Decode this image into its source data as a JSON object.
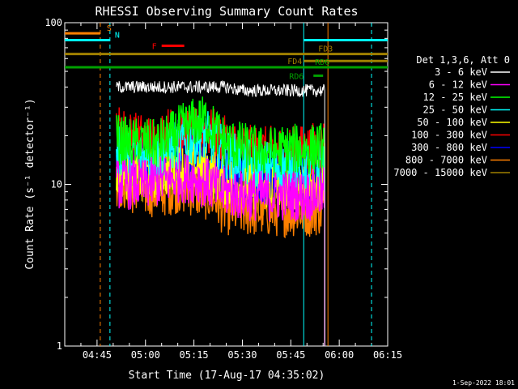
{
  "chart_data": {
    "type": "line",
    "title": "RHESSI Observing Summary Count Rates",
    "xlabel": "Start Time (17-Aug-17 04:35:02)",
    "ylabel": "Count Rate (s⁻¹ detector⁻¹)",
    "yscale": "log",
    "ylim": [
      1,
      100
    ],
    "xlim_minutes": [
      0,
      100
    ],
    "x_ticks": [
      {
        "label": "04:45",
        "minute": 10
      },
      {
        "label": "05:00",
        "minute": 25
      },
      {
        "label": "05:15",
        "minute": 40
      },
      {
        "label": "05:30",
        "minute": 55
      },
      {
        "label": "05:45",
        "minute": 70
      },
      {
        "label": "06:00",
        "minute": 85
      },
      {
        "label": "06:15",
        "minute": 100
      }
    ],
    "y_ticks": [
      {
        "label": "1",
        "value": 1
      },
      {
        "label": "10",
        "value": 10
      },
      {
        "label": "100",
        "value": 100
      }
    ],
    "legend_title": "Det 1,3,6, Att 0",
    "legend_position": "right",
    "footer_date": "1-Sep-2022 18:01",
    "series": [
      {
        "name": "3 - 6 keV",
        "color": "#ffffff",
        "x": [
          16,
          17,
          20,
          25,
          30,
          35,
          40,
          45,
          50,
          55,
          60,
          65,
          70,
          76,
          80.5
        ],
        "y": [
          40,
          40,
          40,
          40,
          40,
          40,
          40,
          40,
          40,
          38,
          38,
          38,
          38,
          38,
          38
        ]
      },
      {
        "name": "6 - 12 keV",
        "color": "#ff00ff",
        "x": [
          16,
          20,
          25,
          30,
          35,
          40,
          45,
          48,
          50,
          55,
          60,
          65,
          70,
          76,
          80.5
        ],
        "y": [
          10,
          10,
          10,
          10.5,
          11,
          11,
          10,
          9,
          9,
          8.5,
          8.5,
          8.5,
          8.5,
          8.5,
          9
        ]
      },
      {
        "name": "12 - 25 keV",
        "color": "#00ff00",
        "x": [
          16,
          20,
          25,
          28,
          32,
          36,
          40,
          44,
          46,
          48,
          50,
          55,
          60,
          65,
          70,
          76,
          80.5
        ],
        "y": [
          19,
          18,
          18,
          17.5,
          19,
          22,
          24,
          25,
          22,
          20,
          18,
          17,
          16,
          16,
          16.5,
          16.5,
          17
        ]
      },
      {
        "name": "25 - 50 keV",
        "color": "#00ffff",
        "x": [
          16,
          20,
          25,
          28,
          32,
          36,
          40,
          44,
          48,
          50,
          55,
          60,
          65,
          70,
          76,
          80.5
        ],
        "y": [
          16,
          15.5,
          15,
          15,
          16.5,
          18,
          19,
          20,
          17,
          15,
          14,
          13,
          13,
          13,
          13,
          14
        ]
      },
      {
        "name": "50 - 100 keV",
        "color": "#ffff00",
        "x": [
          16,
          20,
          25,
          30,
          35,
          40,
          45,
          48,
          50,
          55,
          60,
          65,
          70,
          76,
          80.5
        ],
        "y": [
          12,
          11.5,
          11.5,
          12,
          12.5,
          13,
          12,
          11,
          10.5,
          10,
          10,
          10,
          10,
          10,
          10.5
        ]
      },
      {
        "name": "100 - 300 keV",
        "color": "#ff0000",
        "x": [
          16,
          20,
          25,
          28,
          32,
          36,
          40,
          44,
          48,
          50,
          55,
          60,
          65,
          70,
          76,
          80.5
        ],
        "y": [
          22,
          20,
          19,
          18.5,
          21,
          21,
          20.5,
          21,
          20,
          18,
          16.5,
          16,
          16,
          16,
          16.5,
          18
        ]
      },
      {
        "name": "300 - 800 keV",
        "color": "#0000ff",
        "x": [
          16,
          20,
          25,
          30,
          35,
          40,
          45,
          48,
          50,
          55,
          60,
          65,
          70,
          76,
          80.5
        ],
        "y": [
          15,
          14,
          13.5,
          14,
          14.5,
          14.5,
          13.5,
          12.5,
          11.5,
          11,
          11,
          11,
          11,
          11,
          12
        ]
      },
      {
        "name": "800 - 7000 keV",
        "color": "#ff8000",
        "x": [
          16,
          20,
          25,
          30,
          35,
          40,
          45,
          47,
          49,
          55,
          60,
          65,
          70,
          76,
          80.5
        ],
        "y": [
          10.5,
          9.5,
          9,
          9,
          9.5,
          9,
          8.5,
          8,
          7,
          6.8,
          6.8,
          6.8,
          6.8,
          6.8,
          7
        ]
      },
      {
        "name": "7000 - 15000 keV",
        "color": "#a08000",
        "x": [
          16,
          20,
          25,
          30,
          35,
          40,
          45,
          48,
          50,
          55,
          60,
          65,
          70,
          76,
          80.5
        ],
        "y": [
          11,
          10.5,
          10.5,
          10.5,
          11,
          11,
          10.5,
          10,
          9.5,
          9,
          9,
          9,
          9,
          9,
          9.5
        ]
      }
    ],
    "flags": [
      {
        "label": "S",
        "color": "#ff8000",
        "y": 86,
        "segments": [
          [
            0,
            11
          ]
        ],
        "label_x": 13,
        "label_side": "right"
      },
      {
        "label": "N",
        "color": "#00ffff",
        "y": 78,
        "segments": [
          [
            0,
            14
          ],
          [
            74,
            100
          ]
        ],
        "label_x": 15.5,
        "label_side": "right"
      },
      {
        "label": "F",
        "color": "#ff0000",
        "y": 72,
        "segments": [
          [
            30,
            37
          ]
        ],
        "label_x": 28.5,
        "label_side": "left"
      },
      {
        "label": "FD3",
        "color": "#a08000",
        "y": 64,
        "segments": [
          [
            0,
            100
          ]
        ],
        "label_x": 78.5,
        "label_side": "right"
      },
      {
        "label": "FD4",
        "color": "#a08000",
        "y": 58,
        "segments": [
          [
            74,
            100
          ]
        ],
        "label_x": 73.5,
        "label_side": "left"
      },
      {
        "label": "RD6",
        "color": "#00a000",
        "y": 53,
        "segments": [
          [
            0,
            100
          ]
        ],
        "label_x": 77.5,
        "label_side": "right"
      },
      {
        "label": "RD6",
        "color": "#00a000",
        "y": 47,
        "segments": [
          [
            77,
            80
          ]
        ],
        "label_x": 74,
        "label_side": "left"
      }
    ],
    "vertical_lines": [
      {
        "minute": 11,
        "color": "#ff8000",
        "style": "dashed"
      },
      {
        "minute": 14,
        "color": "#00ffff",
        "style": "dashed"
      },
      {
        "minute": 74,
        "color": "#00ffff",
        "style": "solid"
      },
      {
        "minute": 81.5,
        "color": "#ff8000",
        "style": "solid"
      },
      {
        "minute": 95,
        "color": "#00ffff",
        "style": "dashed"
      }
    ]
  }
}
